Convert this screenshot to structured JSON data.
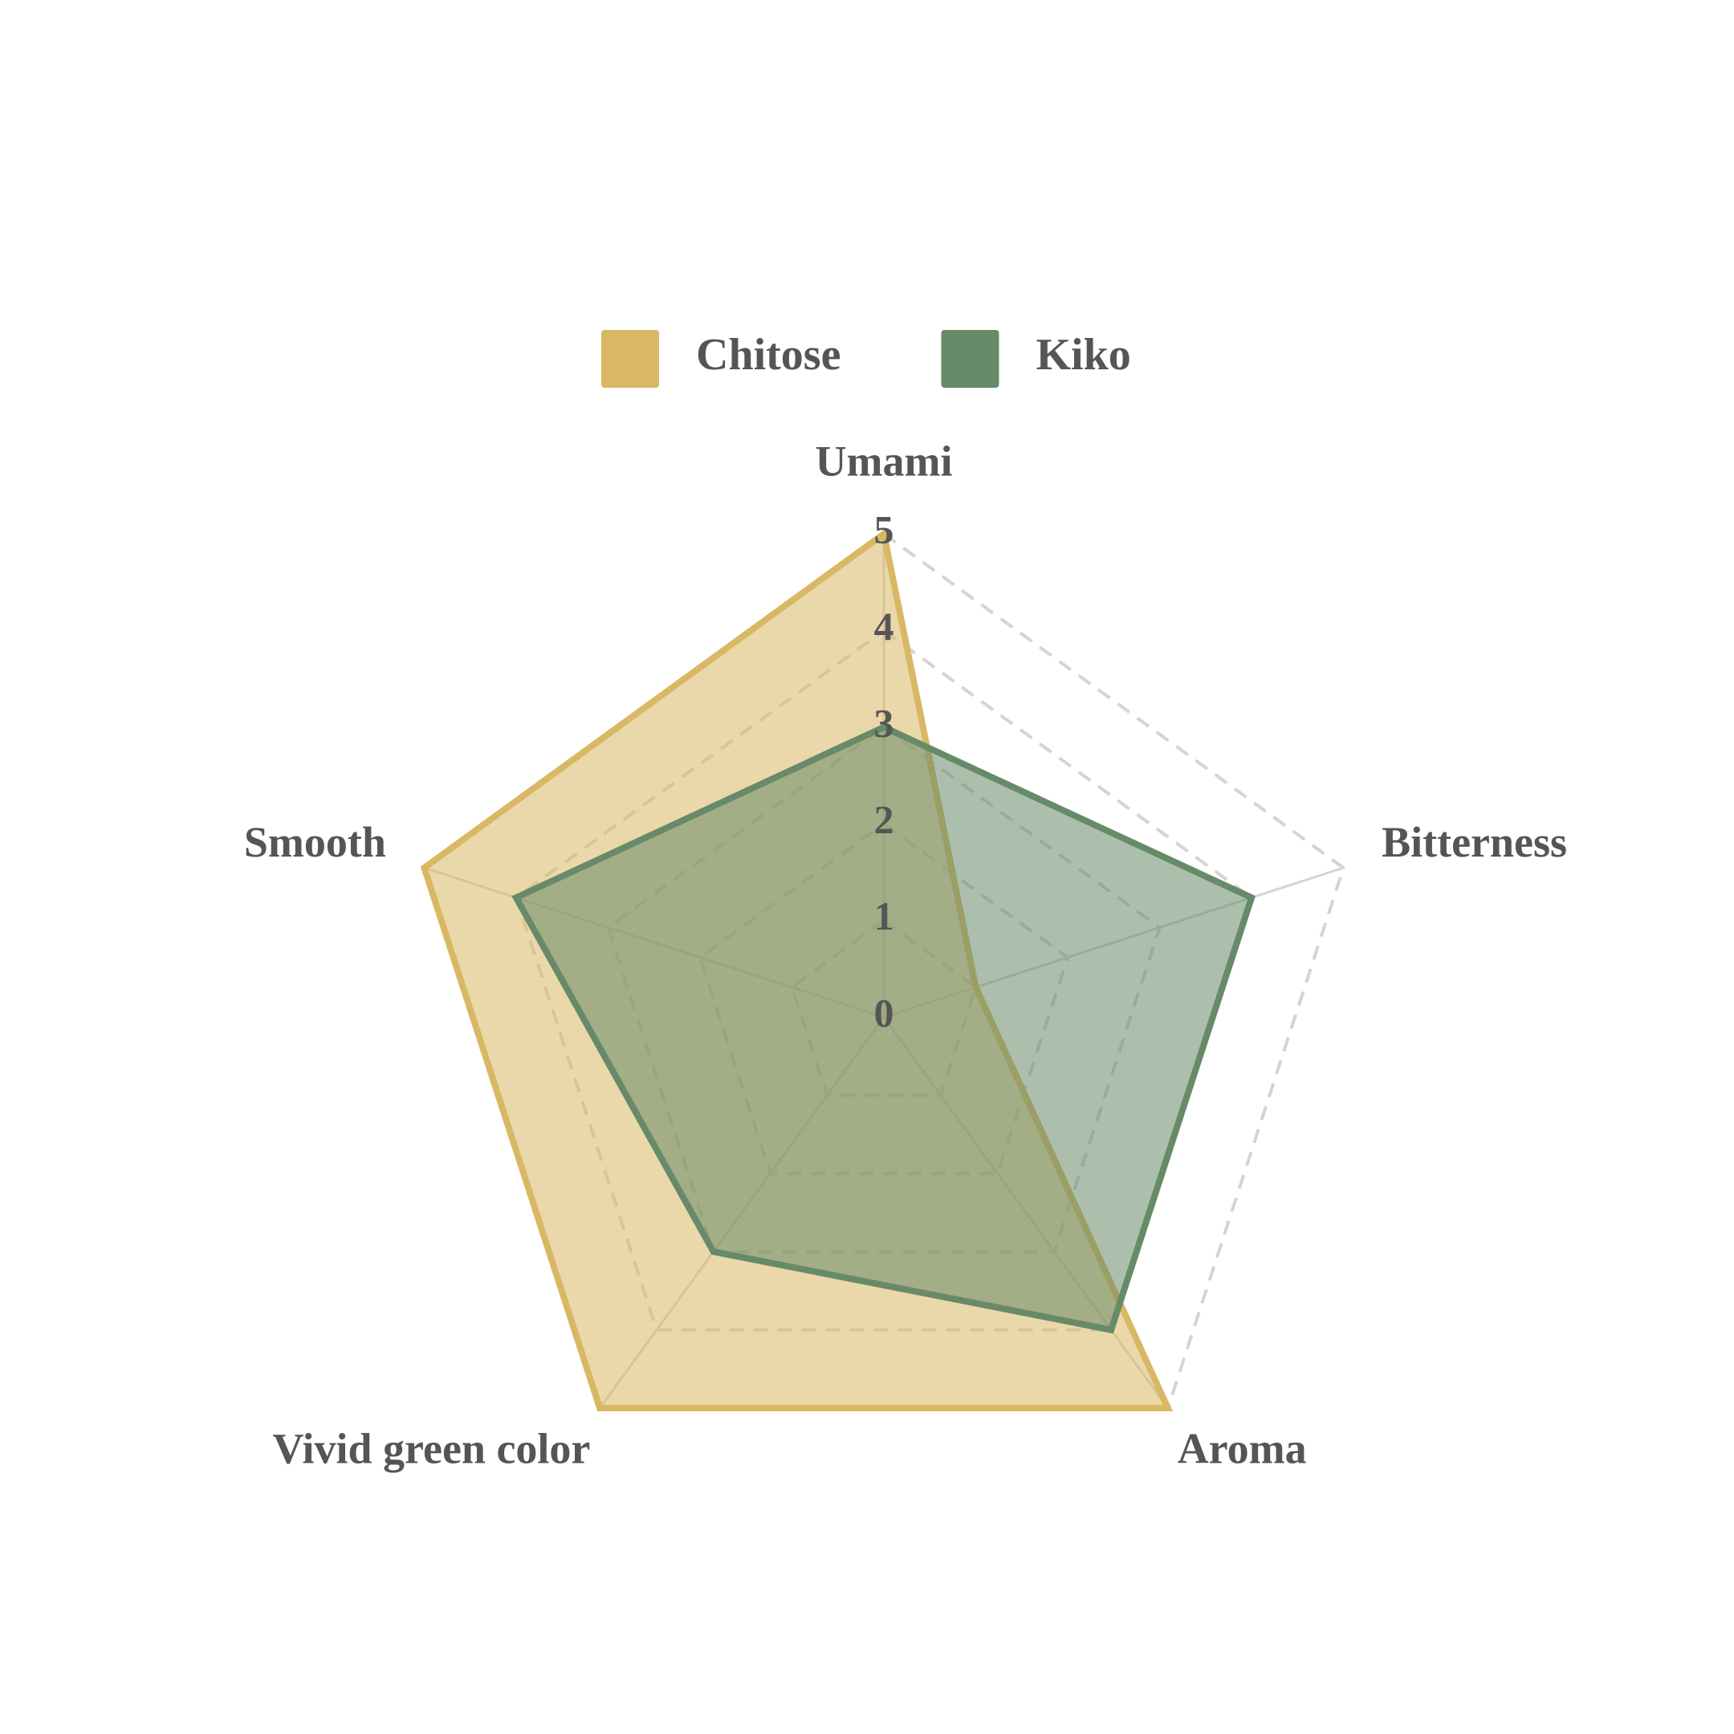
{
  "chart_data": {
    "type": "radar",
    "categories": [
      "Umami",
      "Bitterness",
      "Aroma",
      "Vivid green color",
      "Smooth"
    ],
    "series": [
      {
        "name": "Chitose",
        "color": "#d9b865",
        "values": [
          5,
          1,
          5,
          5,
          5
        ]
      },
      {
        "name": "Kiko",
        "color": "#678a68",
        "values": [
          3,
          4,
          4,
          3,
          4
        ]
      }
    ],
    "rlim": [
      0,
      5
    ],
    "rticks": [
      0,
      1,
      2,
      3,
      4,
      5
    ],
    "grid": true,
    "legend": "top"
  }
}
